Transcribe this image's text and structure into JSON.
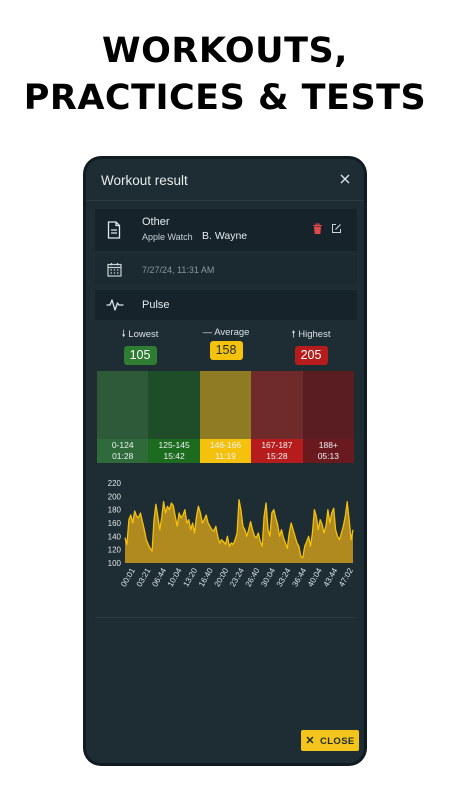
{
  "headline": [
    "WORKOUTS,",
    "PRACTICES & TESTS"
  ],
  "dialog": {
    "title": "Workout result",
    "close_button_label": "CLOSE"
  },
  "activity": {
    "type": "Other",
    "device": "Apple Watch",
    "user": "B. Wayne",
    "icon": "document-icon"
  },
  "date": {
    "text": "7/27/24, 11:31 AM",
    "icon": "calendar-icon"
  },
  "metric": {
    "label": "Pulse",
    "icon": "pulse-icon"
  },
  "stats": {
    "lowest": {
      "label": "Lowest",
      "value": "105",
      "color": "#2e7d32"
    },
    "average": {
      "label": "Average",
      "value": "158",
      "color": "#f4c20d"
    },
    "highest": {
      "label": "Highest",
      "value": "205",
      "color": "#b71c1c"
    }
  },
  "zones": [
    {
      "range": "0-124",
      "time": "01:28",
      "top_color": "#2e5a3a",
      "band_color": "#2f6b3a"
    },
    {
      "range": "125-145",
      "time": "15:42",
      "top_color": "#1f4d2a",
      "band_color": "#1d6b1f"
    },
    {
      "range": "146-166",
      "time": "11:19",
      "top_color": "#8f7b23",
      "band_color": "#f4c20d"
    },
    {
      "range": "167-187",
      "time": "15:28",
      "top_color": "#6f2a2c",
      "band_color": "#b71c1c"
    },
    {
      "range": "188+",
      "time": "05:13",
      "top_color": "#5a1e22",
      "band_color": "#6a1a1f"
    }
  ],
  "chart_data": {
    "type": "area",
    "title": "",
    "xlabel": "",
    "ylabel": "",
    "ylim": [
      100,
      220
    ],
    "yticks": [
      100,
      120,
      140,
      160,
      180,
      200,
      220
    ],
    "x_tick_labels": [
      "00:01",
      "03:21",
      "06:44",
      "10:04",
      "13:20",
      "16:40",
      "20:00",
      "23:24",
      "26:40",
      "30:04",
      "33:24",
      "36:44",
      "40:04",
      "43:44",
      "47:02"
    ],
    "series": [
      {
        "fill": "#b08a1e",
        "line": "#f4c20d",
        "values": [
          138,
          128,
          165,
          172,
          160,
          178,
          170,
          168,
          175,
          162,
          150,
          135,
          128,
          122,
          118,
          165,
          188,
          170,
          150,
          168,
          192,
          175,
          185,
          180,
          190,
          186,
          170,
          155,
          175,
          168,
          172,
          180,
          160,
          165,
          150,
          160,
          145,
          170,
          185,
          175,
          160,
          165,
          172,
          160,
          155,
          150,
          148,
          155,
          140,
          130,
          135,
          132,
          128,
          140,
          125,
          130,
          128,
          135,
          145,
          195,
          180,
          155,
          150,
          140,
          150,
          162,
          150,
          140,
          138,
          145,
          132,
          125,
          170,
          190,
          150,
          140,
          175,
          180,
          168,
          158,
          140,
          150,
          138,
          130,
          122,
          145,
          160,
          150,
          140,
          130,
          125,
          110,
          108,
          125,
          132,
          140,
          125,
          145,
          180,
          170,
          150,
          165,
          158,
          145,
          155,
          180,
          160,
          175,
          182,
          150,
          140,
          135,
          145,
          155,
          170,
          192,
          165,
          135,
          150
        ]
      }
    ]
  }
}
